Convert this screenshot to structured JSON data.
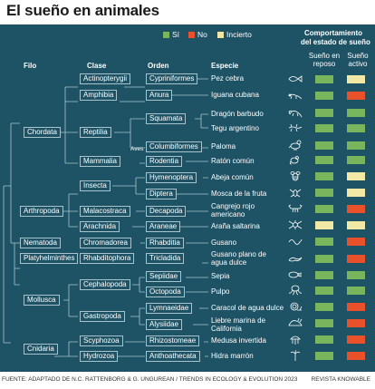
{
  "title": "El sueño en animales",
  "legend": [
    {
      "label": "Sí",
      "color": "#79b55c"
    },
    {
      "label": "No",
      "color": "#e8512a"
    },
    {
      "label": "Incierto",
      "color": "#f1e8a6"
    }
  ],
  "headers": {
    "filo": "Filo",
    "clase": "Clase",
    "orden": "Orden",
    "especie": "Especie",
    "behavior_title_1": "Comportamiento",
    "behavior_title_2": "del estado de sueño",
    "rest_1": "Sueño en",
    "rest_2": "reposo",
    "active_1": "Sueño",
    "active_2": "activo"
  },
  "aves_label": "Aves",
  "phyla": [
    "Chordata",
    "Arthropoda",
    "Nematoda",
    "Platyhelminthes",
    "Mollusca",
    "Cnidaria"
  ],
  "classes": [
    "Actinopterygii",
    "Amphibia",
    "Reptilia",
    "Mammalia",
    "Insecta",
    "Malacostraca",
    "Arachnida",
    "Chromadorea",
    "Rhabditophora",
    "Cephalopoda",
    "Gastropoda",
    "Scyphozoa",
    "Hydrozoa"
  ],
  "orders": [
    "Cypriniformes",
    "Anura",
    "Squamata",
    "Columbiformes",
    "Rodentia",
    "Hymenoptera",
    "Diptera",
    "Decapoda",
    "Araneae",
    "Rhabditia",
    "Tricladida",
    "Sepiidae",
    "Octopoda",
    "Lymnaeidae",
    "Alysiidae",
    "Rhizostomeae",
    "Anthoathecata"
  ],
  "species": [
    {
      "name": "Pez cebra",
      "icon": "fish-icon",
      "rest": "yes",
      "active": "uncertain"
    },
    {
      "name": "Iguana cubana",
      "icon": "iguana-icon",
      "rest": "yes",
      "active": "no"
    },
    {
      "name": "Dragón barbudo",
      "icon": "bearded-dragon-icon",
      "rest": "yes",
      "active": "yes"
    },
    {
      "name": "Tegu argentino",
      "icon": "lizard-icon",
      "rest": "yes",
      "active": "yes"
    },
    {
      "name": "Paloma",
      "icon": "pigeon-icon",
      "rest": "yes",
      "active": "yes"
    },
    {
      "name": "Ratón común",
      "icon": "mouse-icon",
      "rest": "yes",
      "active": "yes"
    },
    {
      "name": "Abeja común",
      "icon": "bee-icon",
      "rest": "yes",
      "active": "uncertain"
    },
    {
      "name": "Mosca de la fruta",
      "icon": "fly-icon",
      "rest": "yes",
      "active": "uncertain"
    },
    {
      "name": "Cangrejo rojo americano",
      "icon": "crayfish-icon",
      "rest": "yes",
      "active": "no"
    },
    {
      "name": "Araña saltarina",
      "icon": "spider-icon",
      "rest": "uncertain",
      "active": "uncertain"
    },
    {
      "name": "Gusano",
      "icon": "worm-icon",
      "rest": "yes",
      "active": "no"
    },
    {
      "name": "Gusano plano de agua dulce",
      "icon": "flatworm-icon",
      "rest": "yes",
      "active": "no"
    },
    {
      "name": "Sepia",
      "icon": "cuttlefish-icon",
      "rest": "yes",
      "active": "yes"
    },
    {
      "name": "Pulpo",
      "icon": "octopus-icon",
      "rest": "yes",
      "active": "yes"
    },
    {
      "name": "Caracol de agua dulce",
      "icon": "snail-icon",
      "rest": "yes",
      "active": "no"
    },
    {
      "name": "Liebre marina de California",
      "icon": "sea-hare-icon",
      "rest": "yes",
      "active": "no"
    },
    {
      "name": "Medusa invertida",
      "icon": "jellyfish-icon",
      "rest": "yes",
      "active": "no"
    },
    {
      "name": "Hidra marrón",
      "icon": "hydra-icon",
      "rest": "yes",
      "active": "no"
    }
  ],
  "footer": {
    "source": "FUENTE: ADAPTADO DE N.C. RATTENBORG & G. UNGUREAN / TRENDS IN ECOLOGY & EVOLUTION 2023",
    "credit": "REVISTA KNOWABLE"
  }
}
